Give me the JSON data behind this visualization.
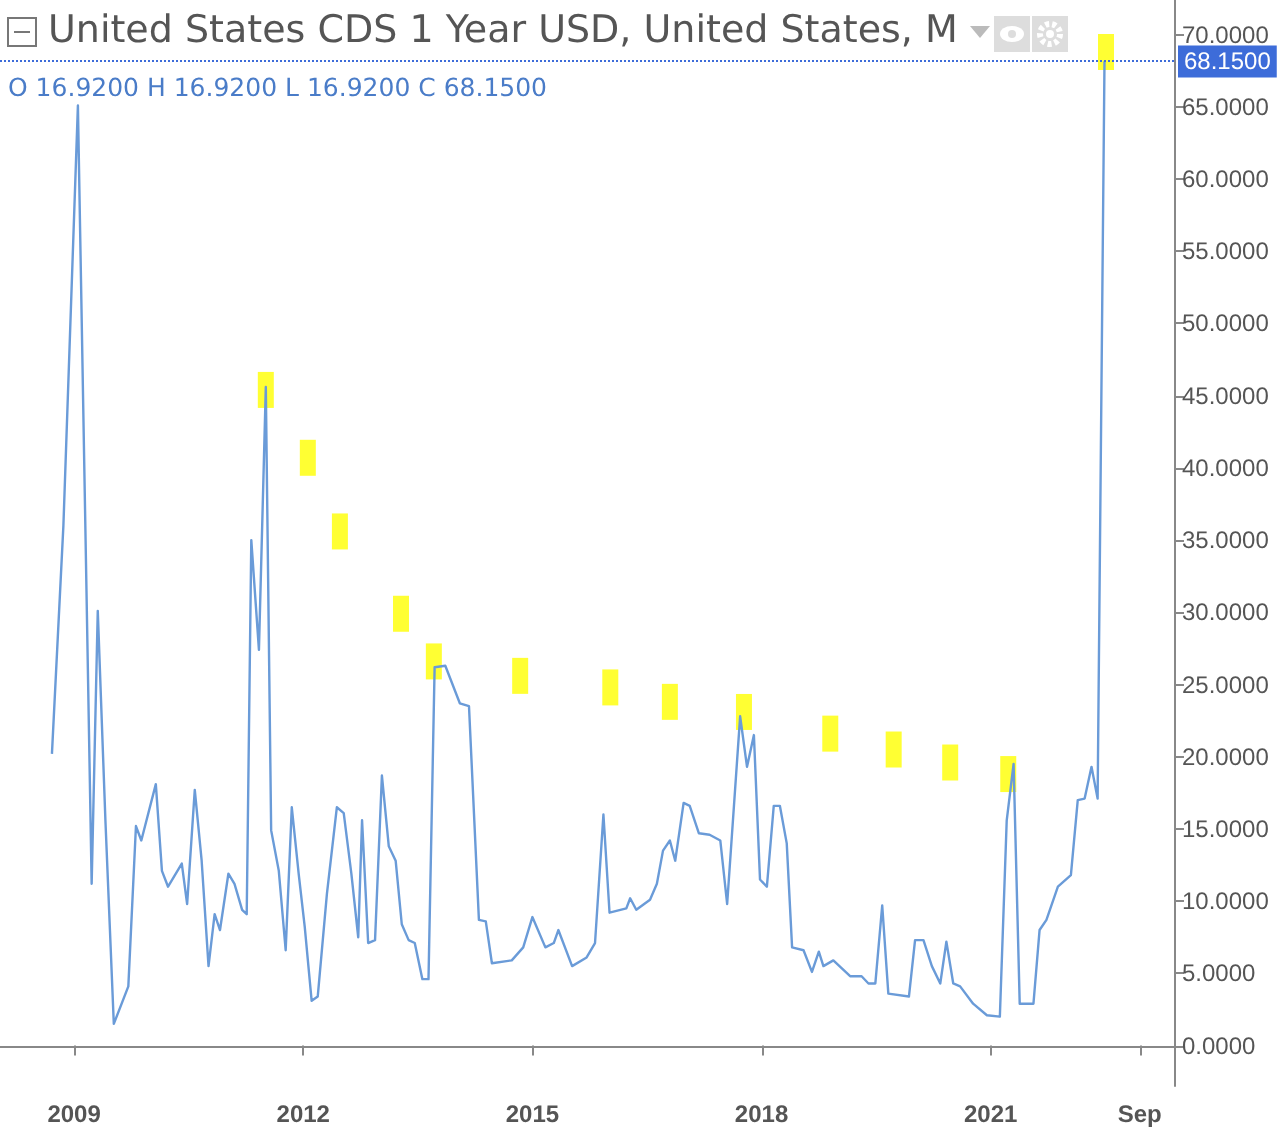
{
  "chart_data": {
    "type": "line",
    "title": "United States CDS 1 Year USD, United States, M",
    "annotations": [
      "O 16.9200 H 16.9200 L 16.9200 C 68.1500"
    ],
    "x": [
      2008.71,
      2008.86,
      2009.05,
      2009.23,
      2009.31,
      2009.41,
      2009.52,
      2009.71,
      2009.81,
      2009.88,
      2010.07,
      2010.15,
      2010.23,
      2010.41,
      2010.48,
      2010.58,
      2010.67,
      2010.76,
      2010.84,
      2010.91,
      2011.02,
      2011.1,
      2011.2,
      2011.26,
      2011.32,
      2011.42,
      2011.51,
      2011.58,
      2011.68,
      2011.77,
      2011.85,
      2011.94,
      2012.02,
      2012.11,
      2012.19,
      2012.31,
      2012.44,
      2012.53,
      2012.63,
      2012.72,
      2012.77,
      2012.85,
      2012.94,
      2013.03,
      2013.12,
      2013.21,
      2013.29,
      2013.38,
      2013.46,
      2013.56,
      2013.64,
      2013.72,
      2013.86,
      2014.05,
      2014.17,
      2014.3,
      2014.39,
      2014.47,
      2014.73,
      2014.88,
      2015.0,
      2015.17,
      2015.28,
      2015.34,
      2015.52,
      2015.71,
      2015.82,
      2015.93,
      2016.01,
      2016.23,
      2016.28,
      2016.36,
      2016.54,
      2016.63,
      2016.71,
      2016.8,
      2016.87,
      2016.98,
      2017.06,
      2017.18,
      2017.32,
      2017.46,
      2017.55,
      2017.72,
      2017.81,
      2017.9,
      2017.98,
      2018.07,
      2018.16,
      2018.24,
      2018.33,
      2018.4,
      2018.55,
      2018.66,
      2018.75,
      2018.81,
      2018.94,
      2019.16,
      2019.31,
      2019.4,
      2019.49,
      2019.58,
      2019.66,
      2019.93,
      2020.01,
      2020.12,
      2020.23,
      2020.34,
      2020.42,
      2020.51,
      2020.6,
      2020.77,
      2020.95,
      2021.12,
      2021.21,
      2021.3,
      2021.38,
      2021.56,
      2021.64,
      2021.73,
      2021.88,
      2022.05,
      2022.14,
      2022.23,
      2022.32,
      2022.4,
      2022.49
    ],
    "series": [
      {
        "color": "#6a9bd8",
        "values": [
          20.2,
          36,
          65.1,
          11.2,
          30.1,
          15.6,
          1.5,
          4.1,
          15.2,
          14.2,
          18.1,
          12.1,
          11,
          12.6,
          9.8,
          17.7,
          12.8,
          5.5,
          9.1,
          8,
          11.9,
          11.2,
          9.4,
          9.1,
          35,
          27.4,
          45.6,
          14.9,
          12.1,
          6.6,
          16.5,
          11.9,
          8.2,
          3.1,
          3.4,
          10.5,
          16.5,
          16.1,
          11.9,
          7.5,
          15.6,
          7.1,
          7.3,
          18.7,
          13.8,
          12.8,
          8.4,
          7.3,
          7.1,
          4.6,
          4.6,
          26.2,
          26.3,
          23.7,
          23.5,
          8.7,
          8.6,
          5.7,
          5.9,
          6.8,
          8.9,
          6.8,
          7.1,
          8,
          5.5,
          6.1,
          7.1,
          16,
          9.2,
          9.5,
          10.2,
          9.4,
          10.1,
          11.2,
          13.5,
          14.2,
          12.8,
          16.8,
          16.6,
          14.7,
          14.6,
          14.2,
          9.8,
          22.8,
          19.3,
          21.5,
          11.5,
          11,
          16.6,
          16.6,
          14,
          6.8,
          6.6,
          5.1,
          6.5,
          5.5,
          5.9,
          4.8,
          4.8,
          4.3,
          4.3,
          9.7,
          3.6,
          3.4,
          7.3,
          7.3,
          5.5,
          4.3,
          7.2,
          4.3,
          4.1,
          2.9,
          2.1,
          2,
          15.6,
          19.5,
          2.9,
          2.9,
          8,
          8.7,
          11,
          11.8,
          17,
          17.1,
          19.3,
          17.1,
          68.15
        ]
      },
      {
        "type": "scatter",
        "marker": "square",
        "color": "#ffff00",
        "x": [
          2011.51,
          2012.06,
          2012.48,
          2013.28,
          2013.71,
          2014.84,
          2016.02,
          2016.8,
          2017.77,
          2018.9,
          2019.73,
          2020.47,
          2021.23,
          2022.51
        ],
        "values": [
          45.4,
          40.7,
          35.6,
          29.9,
          26.6,
          25.6,
          24.8,
          23.8,
          23.1,
          21.6,
          20.5,
          19.6,
          18.8,
          68.8
        ]
      }
    ],
    "xlim": [
      2008.03,
      2023.4
    ],
    "xticks": [
      2009,
      2012,
      2015,
      2018,
      2021,
      {
        "value": 2022.95,
        "label": "Sep"
      }
    ],
    "ylim": [
      -2.8,
      72.4
    ],
    "yticks": [
      {
        "value": 0,
        "label": "0.0000"
      },
      {
        "value": 5,
        "label": "5.0000"
      },
      {
        "value": 10,
        "label": "10.0000"
      },
      {
        "value": 15,
        "label": "15.0000"
      },
      {
        "value": 20,
        "label": "20.0000"
      },
      {
        "value": 25,
        "label": "25.0000"
      },
      {
        "value": 30,
        "label": "30.0000"
      },
      {
        "value": 35,
        "label": "35.0000"
      },
      {
        "value": 40,
        "label": "40.0000"
      },
      {
        "value": 45,
        "label": "45.0000"
      },
      {
        "value": 50,
        "label": "50.0000"
      },
      {
        "value": 55,
        "label": "55.0000"
      },
      {
        "value": 60,
        "label": "60.0000"
      },
      {
        "value": 65,
        "label": "65.0000"
      },
      {
        "value": 70,
        "label": "70.0000"
      }
    ],
    "ref_lines": [
      {
        "axis": "y",
        "value": 68.15,
        "label": "68.1500",
        "color": "#3d6cd9",
        "line_style": "dotted"
      }
    ],
    "marker": "none",
    "grid": false
  }
}
